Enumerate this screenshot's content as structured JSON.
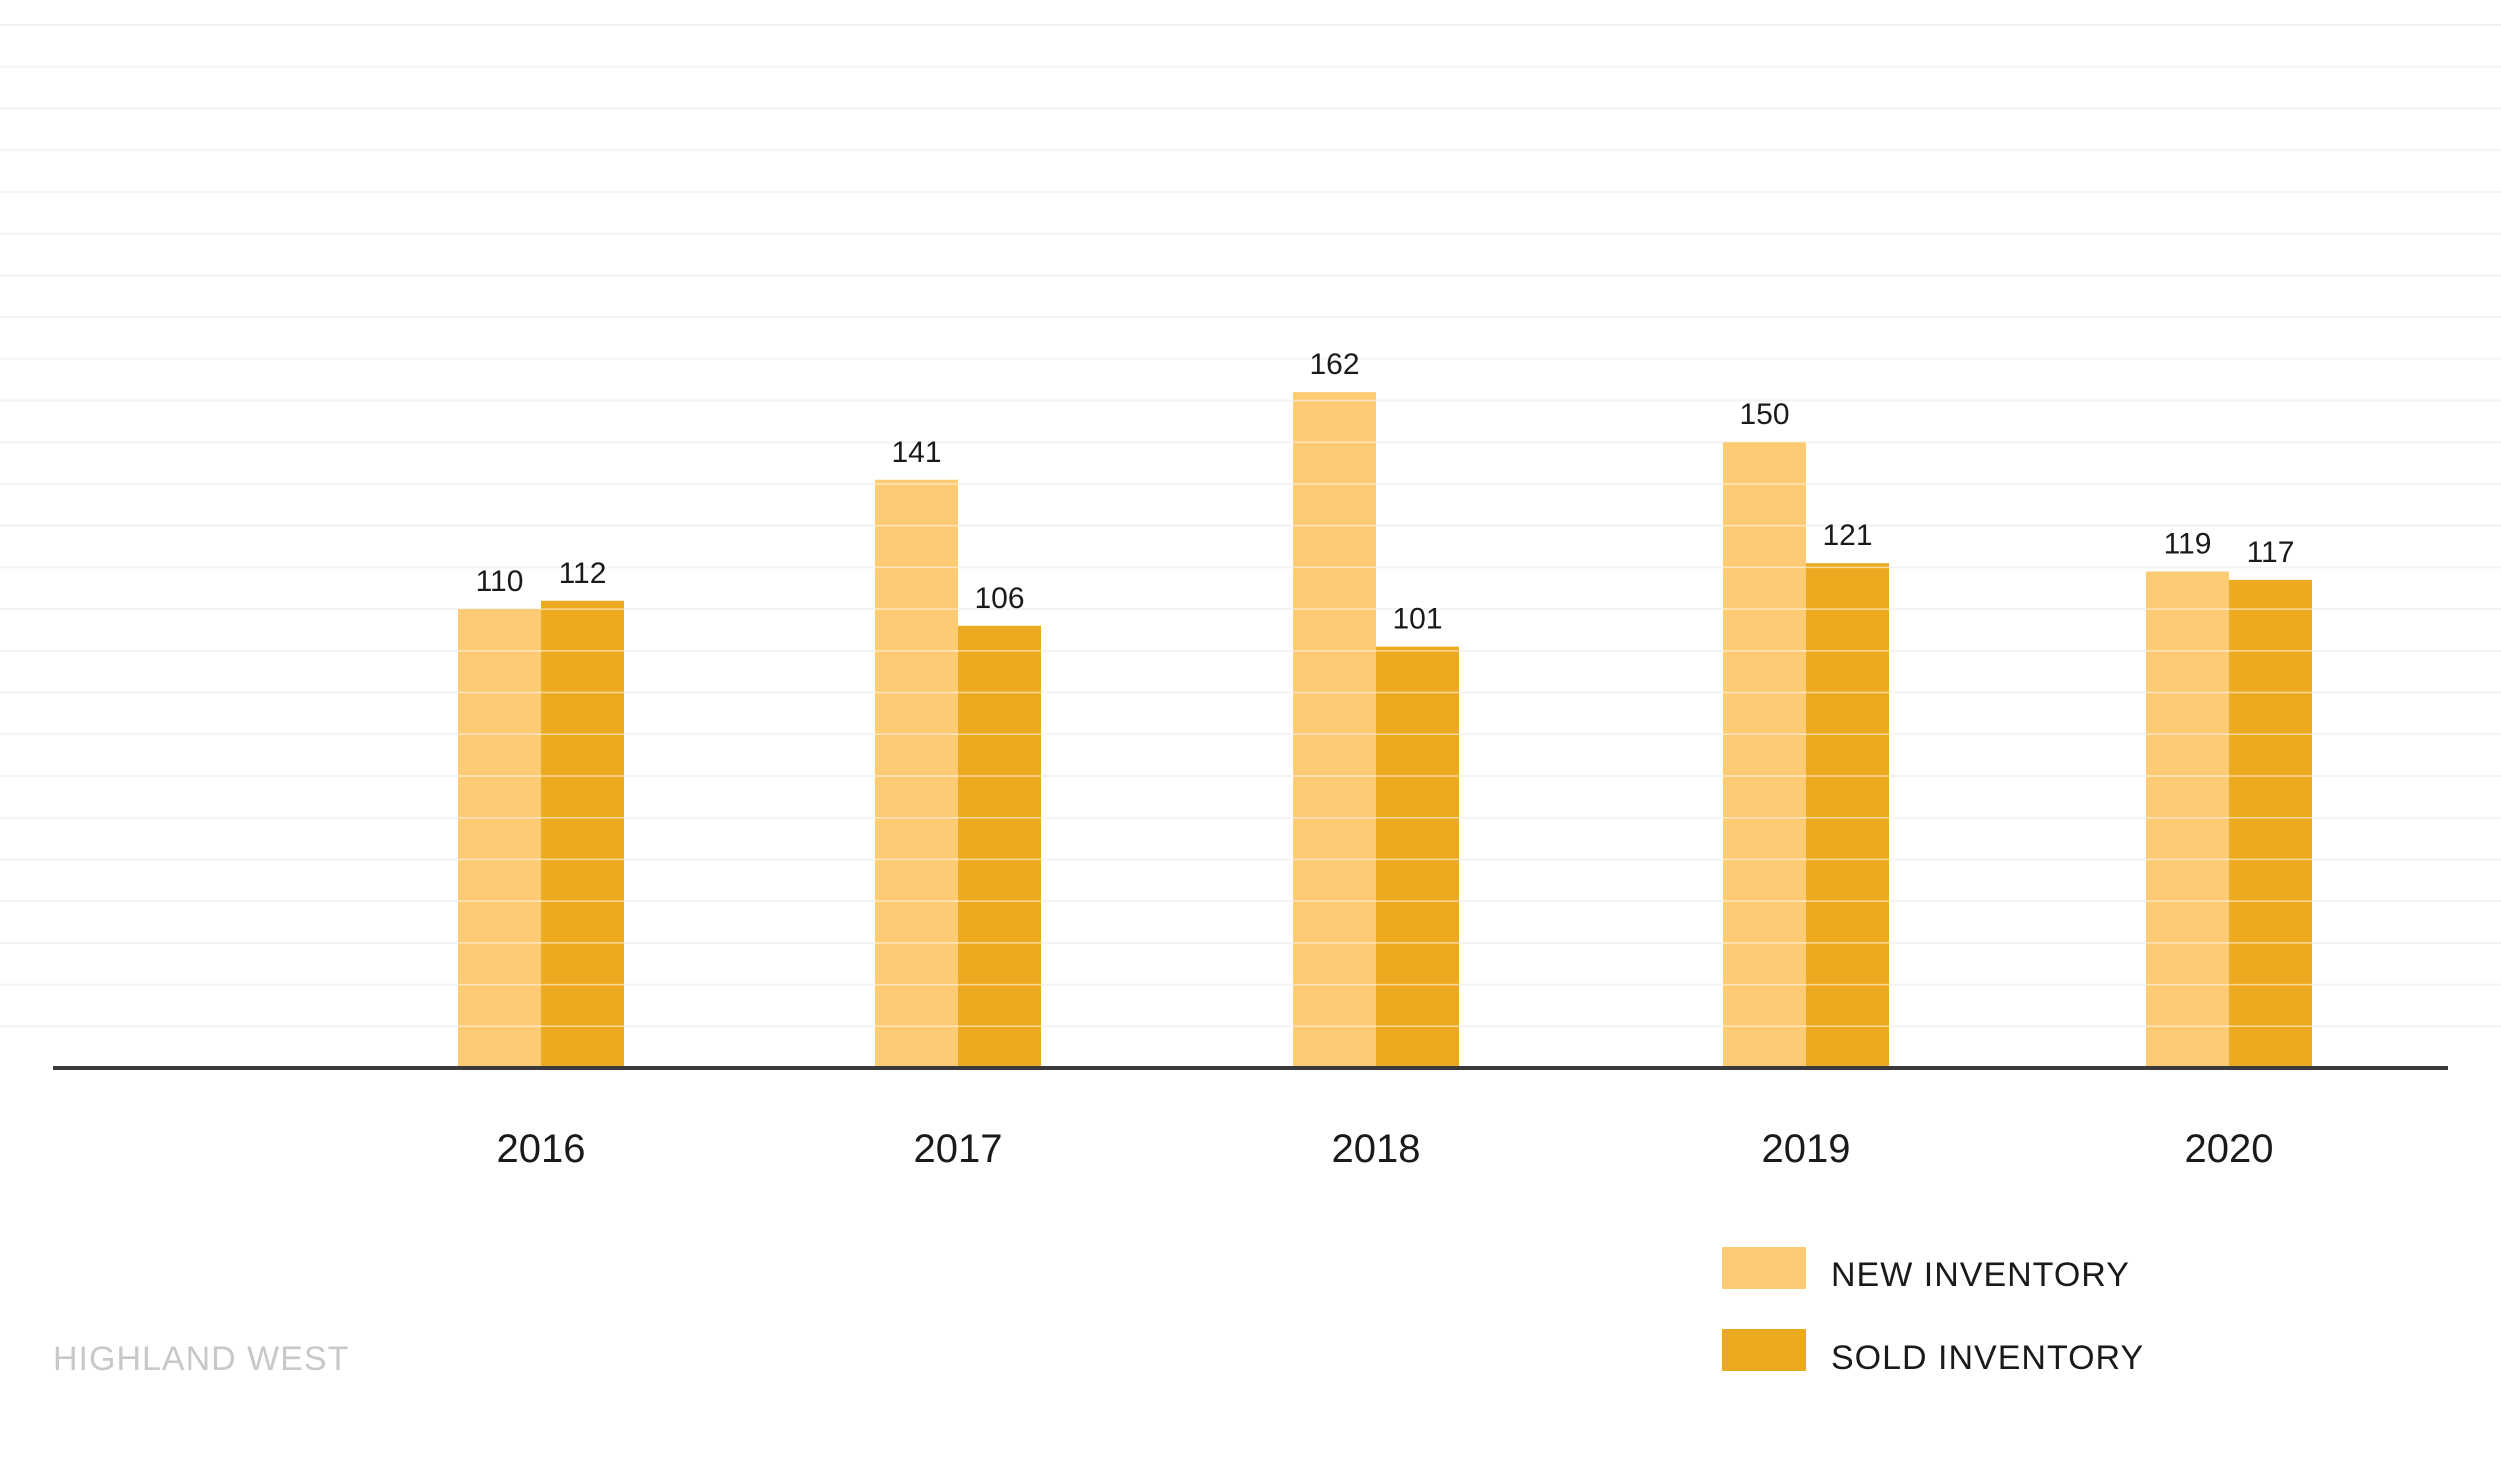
{
  "chart_data": {
    "type": "bar",
    "categories": [
      "2016",
      "2017",
      "2018",
      "2019",
      "2020"
    ],
    "series": [
      {
        "name": "NEW INVENTORY",
        "color": "#FDCB74",
        "values": [
          110,
          141,
          162,
          150,
          119
        ]
      },
      {
        "name": "SOLD INVENTORY",
        "color": "#ECAA20",
        "values": [
          112,
          106,
          101,
          121,
          117
        ]
      }
    ],
    "ylim": [
      0,
      256
    ],
    "grid": true,
    "legend_position": "bottom-right",
    "source_label": "HIGHLAND WEST",
    "axis_color": "#3a3a3a"
  }
}
